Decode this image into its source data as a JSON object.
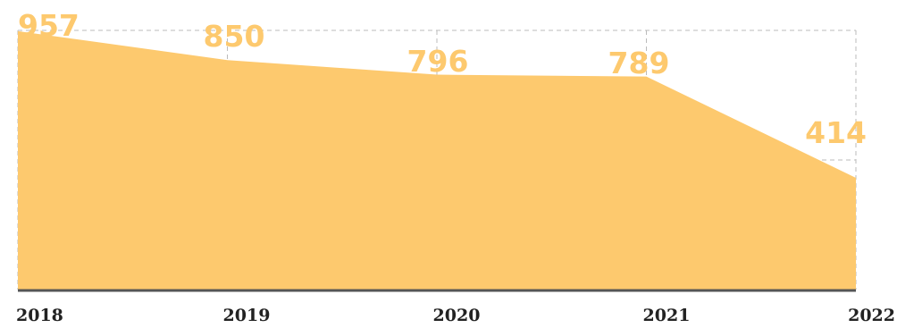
{
  "chart_data": {
    "type": "area",
    "x": [
      "2018",
      "2019",
      "2020",
      "2021",
      "2022"
    ],
    "values": [
      957,
      850,
      796,
      789,
      414
    ],
    "data_labels": [
      "957",
      "850",
      "796",
      "789",
      "414"
    ],
    "title": "",
    "xlabel": "",
    "ylabel": "",
    "ylim": [
      0,
      960
    ],
    "grid": true,
    "legend": "none",
    "colors": {
      "fill": "#FDC96E",
      "label": "#FDC96E",
      "grid": "#BBBBBB",
      "axis": "#555555"
    }
  }
}
